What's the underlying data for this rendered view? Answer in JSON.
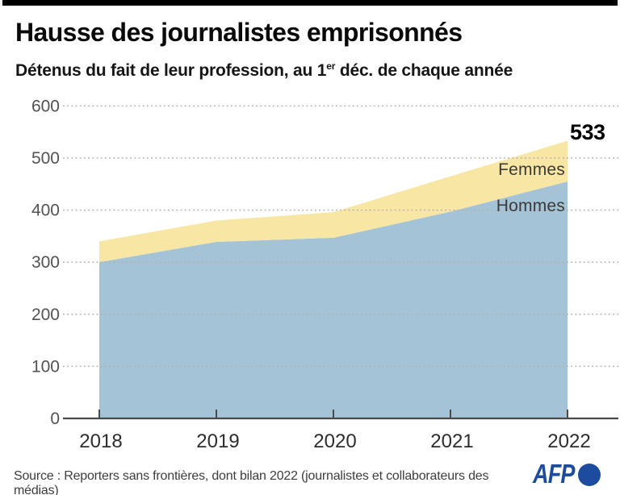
{
  "header": {
    "title": "Hausse des journalistes emprisonnés",
    "subtitle_prefix": "Détenus du fait de leur profession, au 1",
    "subtitle_sup": "er",
    "subtitle_suffix": " déc. de chaque année"
  },
  "chart_data": {
    "type": "area",
    "stacked": true,
    "categories": [
      "2018",
      "2019",
      "2020",
      "2021",
      "2022"
    ],
    "series": [
      {
        "name": "Hommes",
        "color": "#a5c3d6",
        "values": [
          300,
          339,
          347,
          397,
          455
        ]
      },
      {
        "name": "Femmes",
        "color": "#f8e7a4",
        "values": [
          40,
          41,
          49,
          68,
          78
        ]
      }
    ],
    "totals": [
      340,
      380,
      396,
      465,
      533
    ],
    "end_label": "533",
    "yticks": [
      0,
      100,
      200,
      300,
      400,
      500,
      600
    ],
    "ylim": [
      0,
      600
    ],
    "grid": "horizontal-dotted",
    "legend_position": "inline-right",
    "axis_color": "#4a4a4a",
    "grid_color": "#b0b0b0"
  },
  "footer": {
    "source": "Source : Reporters sans frontières, dont bilan 2022 (journalistes et collaborateurs des médias)",
    "logo": "AFP"
  }
}
